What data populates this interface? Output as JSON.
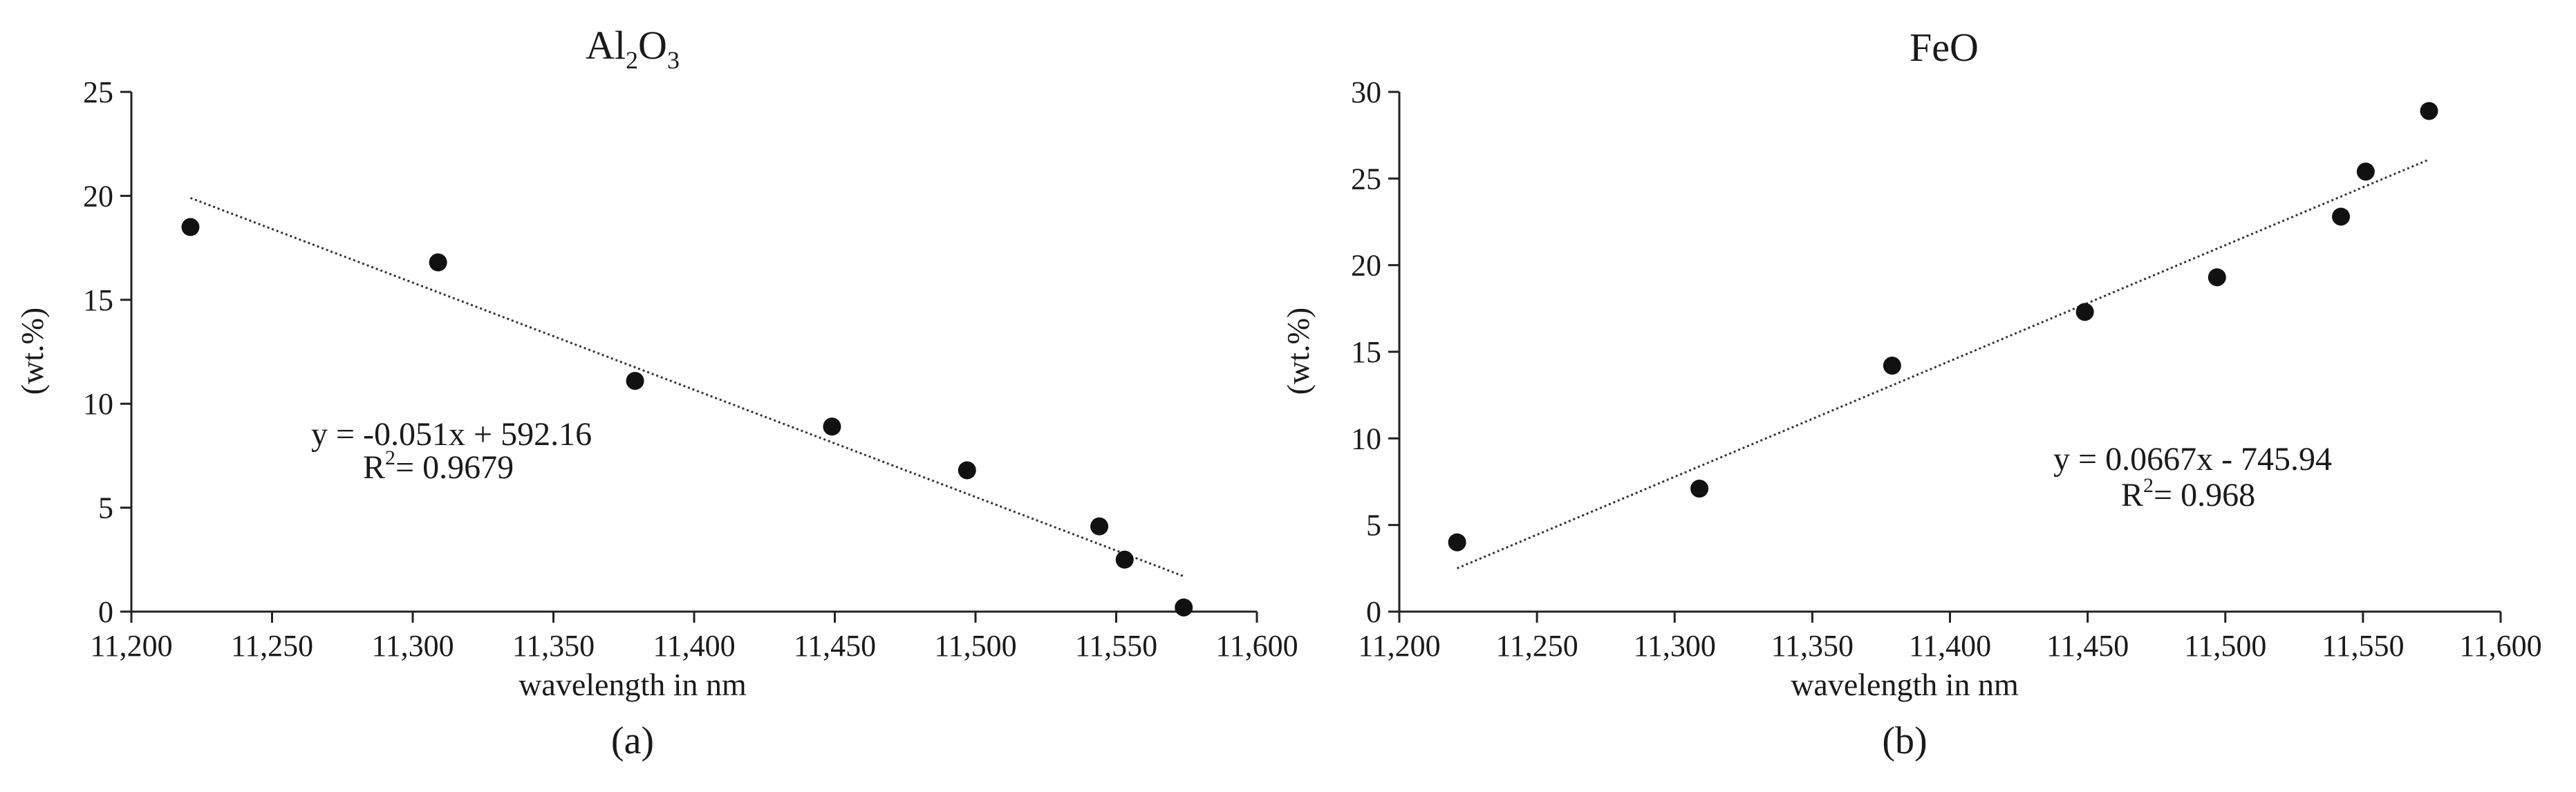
{
  "chart_data": [
    {
      "type": "scatter",
      "title_main": "Al",
      "title_sub1": "2",
      "title_mid": "O",
      "title_sub2": "3",
      "xlabel": "wavelength in nm",
      "ylabel": "(wt.%)",
      "caption": "(a)",
      "xlim": [
        11200,
        11600
      ],
      "ylim": [
        0,
        25
      ],
      "xticks": [
        11200,
        11250,
        11300,
        11350,
        11400,
        11450,
        11500,
        11550,
        11600
      ],
      "xtick_labels": [
        "11,200",
        "11,250",
        "11,300",
        "11,350",
        "11,400",
        "11,450",
        "11,500",
        "11,550",
        "11,600"
      ],
      "yticks": [
        0,
        5,
        10,
        15,
        20,
        25
      ],
      "ytick_labels": [
        "0",
        "5",
        "10",
        "15",
        "20",
        "25"
      ],
      "x": [
        11221,
        11309,
        11379,
        11449,
        11497,
        11544,
        11553,
        11574
      ],
      "y": [
        18.5,
        16.8,
        11.1,
        8.9,
        6.8,
        4.1,
        2.5,
        0.2
      ],
      "trendline": {
        "x": [
          11221,
          11574
        ],
        "y": [
          19.9,
          1.7
        ]
      },
      "equation": "y = -0.051x + 592.16",
      "r2_prefix": "R",
      "r2_sup": "2",
      "r2_value": "= 0.9679"
    },
    {
      "type": "scatter",
      "title": "FeO",
      "xlabel": "wavelength in nm",
      "ylabel": "(wt.%)",
      "caption": "(b)",
      "xlim": [
        11200,
        11600
      ],
      "ylim": [
        0,
        30
      ],
      "xticks": [
        11200,
        11250,
        11300,
        11350,
        11400,
        11450,
        11500,
        11550,
        11600
      ],
      "xtick_labels": [
        "11,200",
        "11,250",
        "11,300",
        "11,350",
        "11,400",
        "11,450",
        "11,500",
        "11,550",
        "11,600"
      ],
      "yticks": [
        0,
        5,
        10,
        15,
        20,
        25,
        30
      ],
      "ytick_labels": [
        "0",
        "5",
        "10",
        "15",
        "20",
        "25",
        "30"
      ],
      "x": [
        11221,
        11309,
        11379,
        11449,
        11497,
        11542,
        11551,
        11574
      ],
      "y": [
        4.0,
        7.1,
        14.2,
        17.3,
        19.3,
        22.8,
        25.4,
        28.9
      ],
      "trendline": {
        "x": [
          11221,
          11574
        ],
        "y": [
          2.5,
          26.1
        ]
      },
      "equation": "y = 0.0667x - 745.94",
      "r2_prefix": "R",
      "r2_sup": "2",
      "r2_value": "= 0.968"
    }
  ]
}
